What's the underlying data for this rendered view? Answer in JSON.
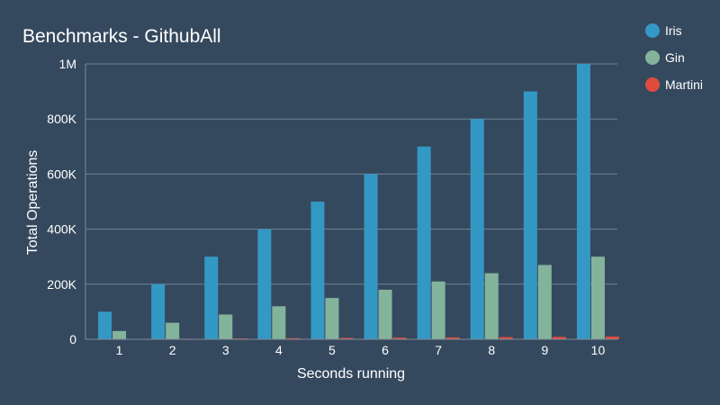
{
  "chart_data": {
    "type": "bar",
    "title": "Benchmarks - GithubAll",
    "xlabel": "Seconds running",
    "ylabel": "Total Operations",
    "categories": [
      "1",
      "2",
      "3",
      "4",
      "5",
      "6",
      "7",
      "8",
      "9",
      "10"
    ],
    "series": [
      {
        "name": "Iris",
        "color": "#3498c4",
        "values": [
          100000,
          200000,
          300000,
          400000,
          500000,
          600000,
          700000,
          800000,
          900000,
          1000000
        ]
      },
      {
        "name": "Gin",
        "color": "#84b39c",
        "values": [
          30000,
          60000,
          90000,
          120000,
          150000,
          180000,
          210000,
          240000,
          270000,
          300000
        ]
      },
      {
        "name": "Martini",
        "color": "#e04c3c",
        "values": [
          1000,
          2000,
          3000,
          4000,
          5000,
          6000,
          7000,
          8000,
          9000,
          10000
        ]
      }
    ],
    "ylim": [
      0,
      1000000
    ],
    "yticks": [
      {
        "value": 0,
        "label": "0"
      },
      {
        "value": 200000,
        "label": "200K"
      },
      {
        "value": 400000,
        "label": "400K"
      },
      {
        "value": 600000,
        "label": "600K"
      },
      {
        "value": 800000,
        "label": "800K"
      },
      {
        "value": 1000000,
        "label": "1M"
      }
    ],
    "grid": true,
    "legend": "top-right"
  }
}
